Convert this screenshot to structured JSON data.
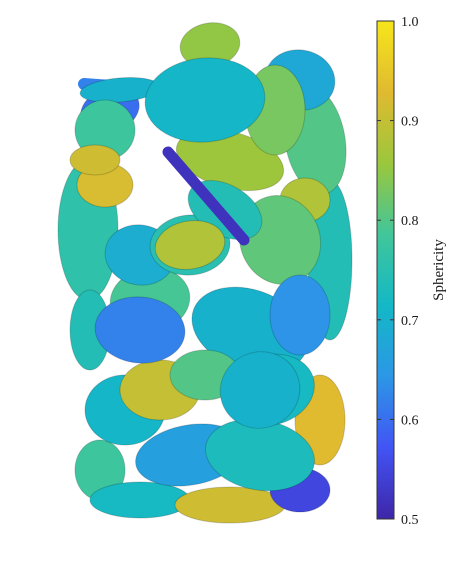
{
  "chart_data": {
    "type": "heatmap",
    "title": "",
    "colorbar": {
      "label": "Sphericity",
      "range": [
        0.5,
        1.0
      ],
      "ticks": [
        0.5,
        0.6,
        0.7,
        0.8,
        0.9,
        1.0
      ],
      "tick_labels": [
        "0.5",
        "0.6",
        "0.7",
        "0.8",
        "0.9",
        "1.0"
      ],
      "colormap": "parula",
      "colormap_stops": [
        "#3e26a8",
        "#4254f5",
        "#2c97e6",
        "#13b8c6",
        "#41c69a",
        "#9bc73c",
        "#e0ba30",
        "#f6e61b"
      ]
    },
    "particles": [
      {
        "v": 0.76
      },
      {
        "v": 0.74
      },
      {
        "v": 0.8
      },
      {
        "v": 0.85
      },
      {
        "v": 0.68
      },
      {
        "v": 0.6
      },
      {
        "v": 0.93
      },
      {
        "v": 0.78
      },
      {
        "v": 0.72
      },
      {
        "v": 0.91
      },
      {
        "v": 0.55
      },
      {
        "v": 0.74
      },
      {
        "v": 0.7
      },
      {
        "v": 0.88
      },
      {
        "v": 0.92
      },
      {
        "v": 0.86
      },
      {
        "v": 0.71
      },
      {
        "v": 0.66
      },
      {
        "v": 0.73
      },
      {
        "v": 0.9
      },
      {
        "v": 0.79
      },
      {
        "v": 0.7
      },
      {
        "v": 0.69
      },
      {
        "v": 0.75
      },
      {
        "v": 0.81
      },
      {
        "v": 0.78
      },
      {
        "v": 0.91
      },
      {
        "v": 0.72
      },
      {
        "v": 0.8
      },
      {
        "v": 0.74
      },
      {
        "v": 0.64
      },
      {
        "v": 0.83
      },
      {
        "v": 0.71
      },
      {
        "v": 0.62
      },
      {
        "v": 0.88
      },
      {
        "v": 0.7
      }
    ]
  }
}
